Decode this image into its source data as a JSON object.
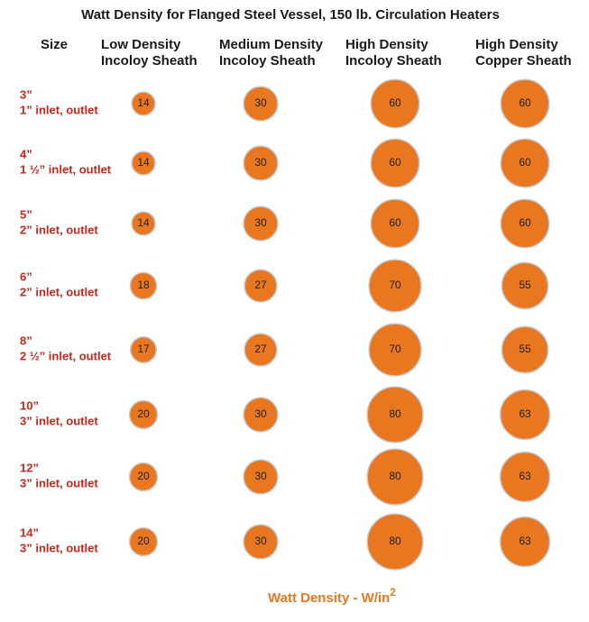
{
  "chart_data": {
    "type": "bubble-matrix",
    "title": "Watt Density for Flanged Steel Vessel, 150 lb. Circulation Heaters",
    "row_header": "Size",
    "categories": [
      "3”",
      "4”",
      "5”",
      "6”",
      "8”",
      "10”",
      "12”",
      "14”"
    ],
    "inlets": [
      "1” inlet, outlet",
      "1 ½” inlet, outlet",
      "2” inlet, outlet",
      "2” inlet, outlet",
      "2 ½” inlet, outlet",
      "3” inlet, outlet",
      "3” inlet, outlet",
      "3” inlet, outlet"
    ],
    "series": [
      {
        "name": [
          "Low Density",
          "Incoloy Sheath"
        ],
        "color": "#e8771f",
        "values": [
          14,
          14,
          14,
          18,
          17,
          20,
          20,
          20
        ]
      },
      {
        "name": [
          "Medium Density",
          "Incoloy Sheath"
        ],
        "color": "#e8771f",
        "values": [
          30,
          30,
          30,
          27,
          27,
          30,
          30,
          30
        ]
      },
      {
        "name": [
          "High Density",
          "Incoloy Sheath"
        ],
        "color": "#e8771f",
        "values": [
          60,
          60,
          60,
          70,
          70,
          80,
          80,
          80
        ]
      },
      {
        "name": [
          "High Density",
          "Copper Sheath"
        ],
        "color": "#e8771f",
        "values": [
          60,
          60,
          60,
          55,
          55,
          63,
          63,
          63
        ]
      }
    ],
    "x_label": "Watt Density - W/in",
    "x_label_superscript": "2"
  }
}
